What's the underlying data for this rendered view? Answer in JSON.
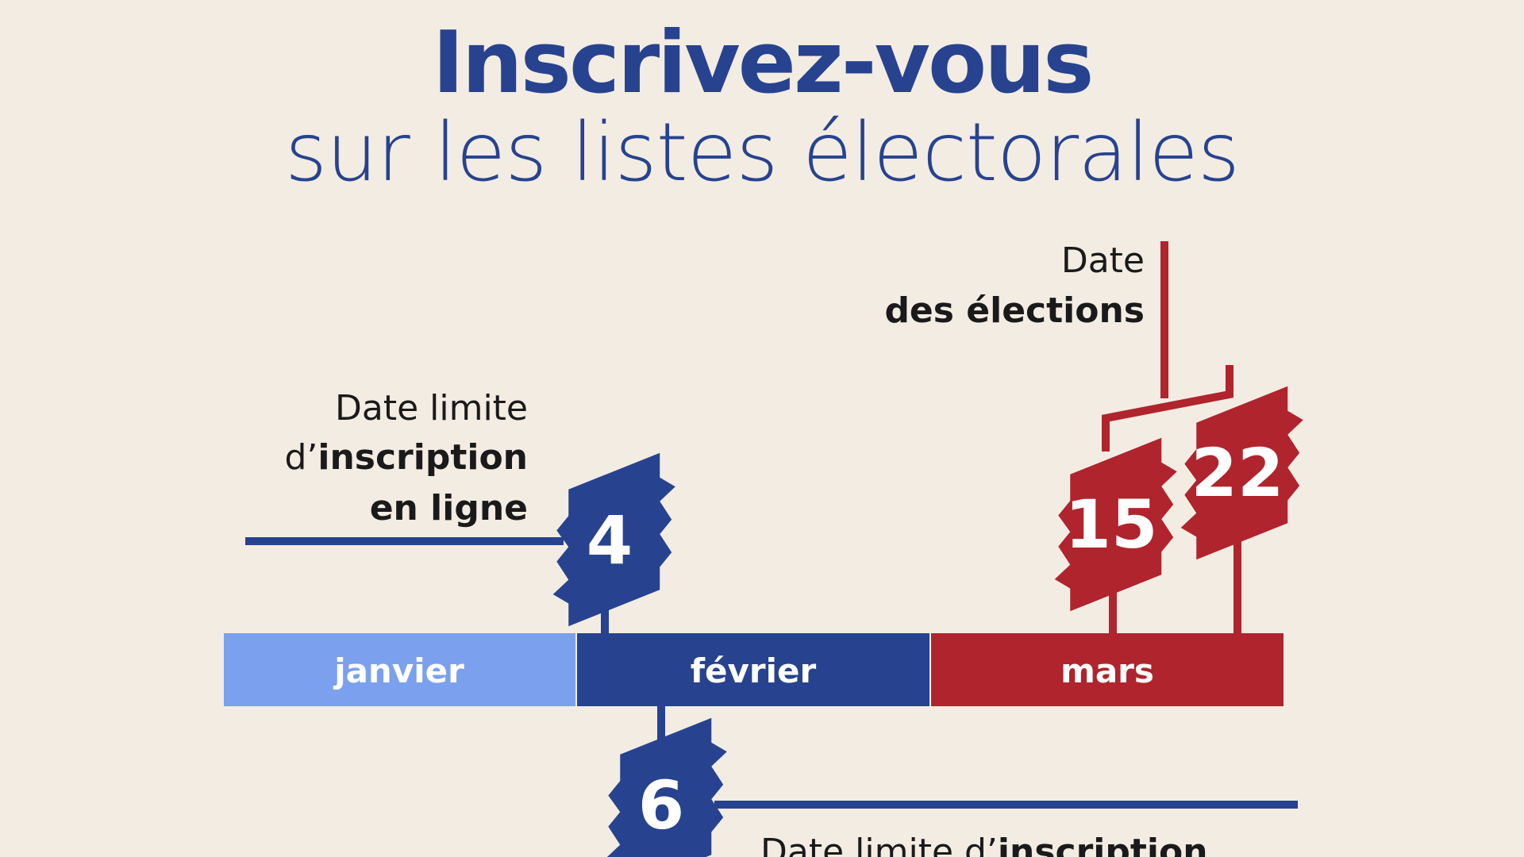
{
  "title": {
    "line1": "Inscrivez-vous",
    "line2": "sur les listes électorales"
  },
  "months": [
    "janvier",
    "février",
    "mars"
  ],
  "online_deadline": {
    "day": 4,
    "label": {
      "line1": "Date limite",
      "prefix": "d’",
      "bold": "inscription",
      "line3": "en ligne"
    }
  },
  "elections": {
    "days": [
      15,
      22
    ],
    "label": {
      "line1": "Date",
      "line2": "des élections"
    }
  },
  "mairie_deadline": {
    "day": 6,
    "label": {
      "prefix": "Date limite d’",
      "bold": "inscription"
    }
  }
}
